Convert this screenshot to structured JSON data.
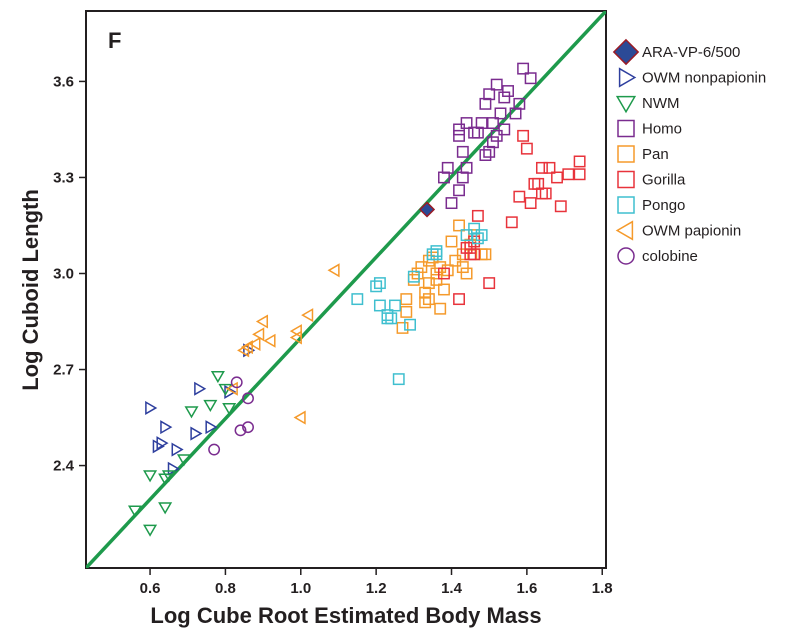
{
  "chart_data": {
    "type": "scatter",
    "panel_label": "F",
    "xlabel": "Log Cube Root Estimated Body Mass",
    "ylabel": "Log Cuboid Length",
    "xlim": [
      0.43,
      1.81
    ],
    "ylim": [
      2.08,
      3.82
    ],
    "x_ticks": [
      0.6,
      0.8,
      1.0,
      1.2,
      1.4,
      1.6,
      1.8
    ],
    "x_tick_labels": [
      "0.6",
      "0.8",
      "1.0",
      "1.2",
      "1.4",
      "1.6",
      "1.8"
    ],
    "y_ticks": [
      2.4,
      2.7,
      3.0,
      3.3,
      3.6
    ],
    "y_tick_labels": [
      "2.4",
      "2.7",
      "3.0",
      "3.3",
      "3.6"
    ],
    "grid": false,
    "legend_position": "outside-right",
    "regression_line": {
      "points": [
        [
          0.43,
          2.08
        ],
        [
          1.81,
          3.82
        ]
      ],
      "color": "#1e9a4c"
    },
    "series": [
      {
        "name": "ARA-VP-6/500",
        "marker": "diamond",
        "color": "#9a1b26",
        "fill": "#2b4a96",
        "points": [
          [
            1.335,
            3.2
          ]
        ]
      },
      {
        "name": "OWM nonpapionin",
        "marker": "triangle-right",
        "color": "#2e3f9e",
        "points": [
          [
            0.6,
            2.58
          ],
          [
            0.64,
            2.52
          ],
          [
            0.63,
            2.47
          ],
          [
            0.62,
            2.46
          ],
          [
            0.66,
            2.39
          ],
          [
            0.67,
            2.45
          ],
          [
            0.72,
            2.5
          ],
          [
            0.73,
            2.64
          ],
          [
            0.76,
            2.52
          ],
          [
            0.81,
            2.63
          ],
          [
            0.86,
            2.76
          ]
        ]
      },
      {
        "name": "NWM",
        "marker": "triangle-down",
        "color": "#1e9a4c",
        "points": [
          [
            0.56,
            2.26
          ],
          [
            0.6,
            2.2
          ],
          [
            0.6,
            2.37
          ],
          [
            0.64,
            2.27
          ],
          [
            0.65,
            2.37
          ],
          [
            0.69,
            2.42
          ],
          [
            0.71,
            2.57
          ],
          [
            0.76,
            2.59
          ],
          [
            0.78,
            2.68
          ],
          [
            0.8,
            2.64
          ],
          [
            0.81,
            2.58
          ],
          [
            0.64,
            2.36
          ]
        ]
      },
      {
        "name": "Homo",
        "marker": "square",
        "color": "#7a2c8f",
        "points": [
          [
            1.38,
            3.3
          ],
          [
            1.39,
            3.33
          ],
          [
            1.4,
            3.22
          ],
          [
            1.42,
            3.43
          ],
          [
            1.42,
            3.45
          ],
          [
            1.43,
            3.3
          ],
          [
            1.43,
            3.38
          ],
          [
            1.44,
            3.33
          ],
          [
            1.44,
            3.47
          ],
          [
            1.46,
            3.44
          ],
          [
            1.47,
            3.44
          ],
          [
            1.48,
            3.47
          ],
          [
            1.49,
            3.37
          ],
          [
            1.49,
            3.53
          ],
          [
            1.5,
            3.56
          ],
          [
            1.51,
            3.41
          ],
          [
            1.51,
            3.47
          ],
          [
            1.52,
            3.43
          ],
          [
            1.52,
            3.59
          ],
          [
            1.53,
            3.5
          ],
          [
            1.54,
            3.55
          ],
          [
            1.54,
            3.45
          ],
          [
            1.55,
            3.57
          ],
          [
            1.57,
            3.5
          ],
          [
            1.58,
            3.53
          ],
          [
            1.59,
            3.64
          ],
          [
            1.61,
            3.61
          ],
          [
            1.42,
            3.26
          ],
          [
            1.5,
            3.38
          ]
        ]
      },
      {
        "name": "Pan",
        "marker": "square",
        "color": "#f59a2b",
        "points": [
          [
            1.27,
            2.83
          ],
          [
            1.28,
            2.88
          ],
          [
            1.28,
            2.92
          ],
          [
            1.3,
            2.98
          ],
          [
            1.31,
            3.0
          ],
          [
            1.32,
            3.02
          ],
          [
            1.33,
            2.91
          ],
          [
            1.33,
            2.94
          ],
          [
            1.34,
            2.92
          ],
          [
            1.34,
            2.97
          ],
          [
            1.35,
            3.05
          ],
          [
            1.36,
            2.98
          ],
          [
            1.37,
            3.02
          ],
          [
            1.37,
            2.89
          ],
          [
            1.38,
            2.95
          ],
          [
            1.39,
            3.01
          ],
          [
            1.4,
            3.1
          ],
          [
            1.41,
            3.04
          ],
          [
            1.42,
            3.15
          ],
          [
            1.43,
            3.02
          ],
          [
            1.43,
            3.06
          ],
          [
            1.44,
            3.0
          ],
          [
            1.45,
            3.09
          ],
          [
            1.46,
            3.12
          ],
          [
            1.48,
            3.06
          ],
          [
            1.49,
            3.06
          ],
          [
            1.34,
            3.04
          ],
          [
            1.36,
            3.0
          ]
        ]
      },
      {
        "name": "Gorilla",
        "marker": "square",
        "color": "#e8333b",
        "points": [
          [
            1.38,
            3.0
          ],
          [
            1.42,
            2.92
          ],
          [
            1.45,
            3.08
          ],
          [
            1.46,
            3.06
          ],
          [
            1.46,
            3.1
          ],
          [
            1.47,
            3.18
          ],
          [
            1.5,
            2.97
          ],
          [
            1.56,
            3.16
          ],
          [
            1.58,
            3.24
          ],
          [
            1.59,
            3.43
          ],
          [
            1.6,
            3.39
          ],
          [
            1.61,
            3.22
          ],
          [
            1.62,
            3.28
          ],
          [
            1.63,
            3.28
          ],
          [
            1.64,
            3.25
          ],
          [
            1.64,
            3.33
          ],
          [
            1.65,
            3.25
          ],
          [
            1.66,
            3.33
          ],
          [
            1.68,
            3.3
          ],
          [
            1.69,
            3.21
          ],
          [
            1.71,
            3.31
          ],
          [
            1.74,
            3.31
          ],
          [
            1.74,
            3.35
          ],
          [
            1.44,
            3.08
          ],
          [
            1.45,
            3.06
          ]
        ]
      },
      {
        "name": "Pongo",
        "marker": "square",
        "color": "#3fbfcf",
        "points": [
          [
            1.15,
            2.92
          ],
          [
            1.2,
            2.96
          ],
          [
            1.21,
            2.97
          ],
          [
            1.21,
            2.9
          ],
          [
            1.23,
            2.87
          ],
          [
            1.24,
            2.86
          ],
          [
            1.25,
            2.9
          ],
          [
            1.26,
            2.67
          ],
          [
            1.29,
            2.84
          ],
          [
            1.3,
            2.99
          ],
          [
            1.35,
            3.06
          ],
          [
            1.36,
            3.07
          ],
          [
            1.36,
            3.06
          ],
          [
            1.44,
            3.12
          ],
          [
            1.46,
            3.14
          ],
          [
            1.47,
            3.11
          ],
          [
            1.48,
            3.12
          ],
          [
            1.23,
            2.86
          ]
        ]
      },
      {
        "name": "OWM papionin",
        "marker": "triangle-left",
        "color": "#f59a2b",
        "points": [
          [
            0.82,
            2.64
          ],
          [
            0.85,
            2.76
          ],
          [
            0.86,
            2.77
          ],
          [
            0.88,
            2.78
          ],
          [
            0.89,
            2.81
          ],
          [
            0.9,
            2.85
          ],
          [
            0.92,
            2.79
          ],
          [
            0.99,
            2.8
          ],
          [
            0.99,
            2.82
          ],
          [
            1.02,
            2.87
          ],
          [
            1.0,
            2.55
          ],
          [
            1.09,
            3.01
          ]
        ]
      },
      {
        "name": "colobine",
        "marker": "circle",
        "color": "#7a2c8f",
        "points": [
          [
            0.77,
            2.45
          ],
          [
            0.83,
            2.66
          ],
          [
            0.84,
            2.51
          ],
          [
            0.86,
            2.61
          ],
          [
            0.86,
            2.52
          ]
        ]
      }
    ]
  }
}
